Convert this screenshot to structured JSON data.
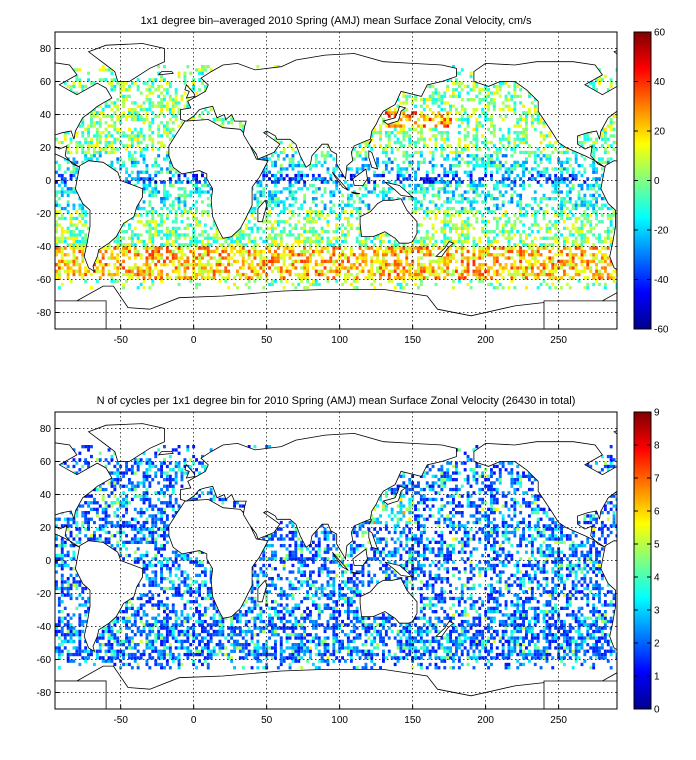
{
  "chart_data": [
    {
      "type": "heatmap",
      "title": "1x1 degree bin–averaged 2010 Spring (AMJ) mean Surface Zonal Velocity, cm/s",
      "xlabel": "",
      "ylabel": "",
      "xlim": [
        -95,
        290
      ],
      "ylim": [
        -90,
        90
      ],
      "xticks": [
        -50,
        0,
        50,
        100,
        150,
        200,
        250
      ],
      "yticks": [
        -80,
        -60,
        -40,
        -20,
        0,
        20,
        40,
        60,
        80
      ],
      "grid": true,
      "colorbar": {
        "colormap": "jet",
        "range": [
          -60,
          60
        ],
        "ticks": [
          -60,
          -40,
          -20,
          0,
          20,
          40,
          60
        ],
        "placement": "right"
      }
    },
    {
      "type": "heatmap",
      "title": "N of cycles per 1x1 degree bin for 2010 Spring (AMJ) mean Surface Zonal Velocity (26430 in total)",
      "xlabel": "",
      "ylabel": "",
      "xlim": [
        -95,
        290
      ],
      "ylim": [
        -90,
        90
      ],
      "xticks": [
        -50,
        0,
        50,
        100,
        150,
        200,
        250
      ],
      "yticks": [
        -80,
        -60,
        -40,
        -20,
        0,
        20,
        40,
        60,
        80
      ],
      "grid": true,
      "colorbar": {
        "colormap": "jet",
        "range": [
          0,
          9
        ],
        "ticks": [
          0,
          1,
          2,
          3,
          4,
          5,
          6,
          7,
          8,
          9
        ],
        "placement": "right"
      }
    }
  ]
}
